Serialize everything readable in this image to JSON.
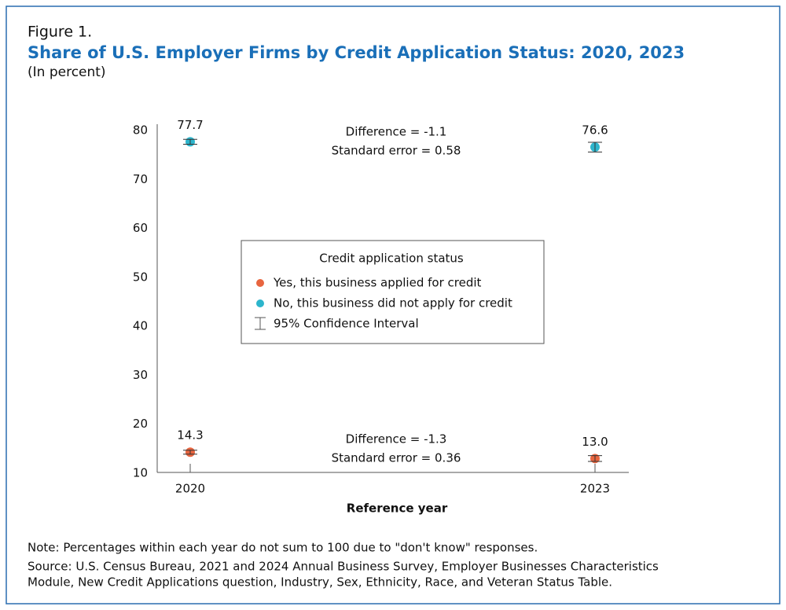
{
  "chart_data": {
    "type": "dot-errorbar",
    "figure_label": "Figure 1.",
    "title": "Share of U.S. Employer Firms by Credit Application Status: 2020, 2023",
    "subtitle": "(In percent)",
    "x_label": "Reference year",
    "categories": [
      "2020",
      "2023"
    ],
    "ylim": [
      10,
      80
    ],
    "yticks": [
      10,
      20,
      30,
      40,
      50,
      60,
      70,
      80
    ],
    "series": [
      {
        "name": "Yes, this business applied for credit",
        "color": "#e8653f",
        "values": [
          14.3,
          13
        ],
        "value_labels": [
          "14.3",
          "13.0"
        ],
        "errors": [
          0.4,
          0.6
        ]
      },
      {
        "name": "No, this business did not apply for credit",
        "color": "#2cb5cc",
        "values": [
          77.7,
          76.6
        ],
        "value_labels": [
          "77.7",
          "76.6"
        ],
        "errors": [
          0.5,
          1.0
        ]
      }
    ],
    "legend_title": "Credit application status",
    "ci_label": "95% Confidence Interval",
    "annotations": [
      [
        "Difference  =  -1.3",
        "Standard error  =  0.36"
      ],
      [
        "Difference  =  -1.1",
        "Standard error  =  0.58"
      ]
    ],
    "note": "Note: Percentages within each year do not sum to 100 due to \"don't know\" responses.",
    "source": [
      "Source: U.S. Census Bureau, 2021 and 2024 Annual Business Survey, Employer Businesses Characteristics",
      "Module, New Credit Applications question, Industry, Sex, Ethnicity, Race, and Veteran Status Table."
    ]
  }
}
